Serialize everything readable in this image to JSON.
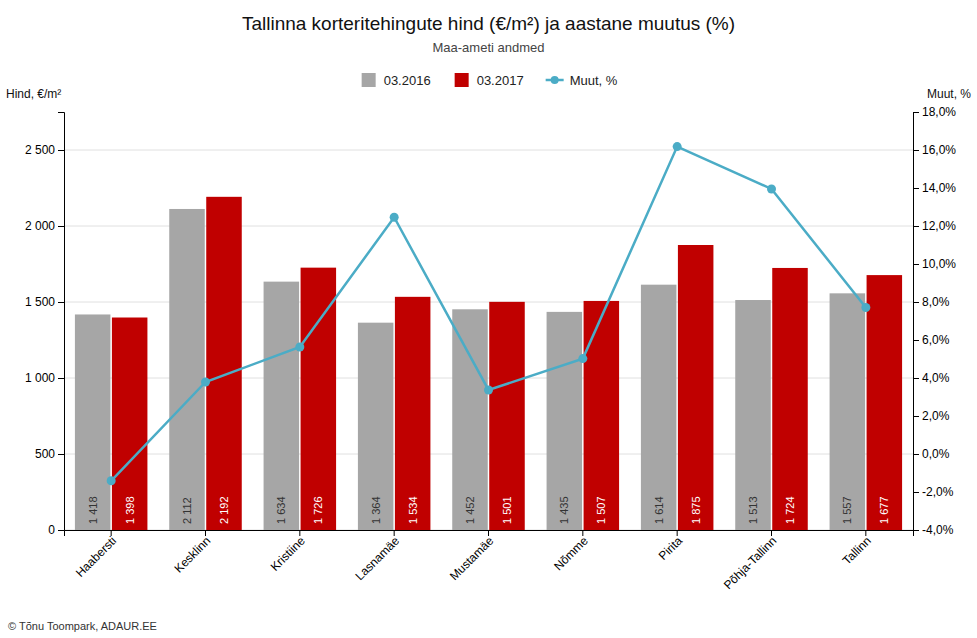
{
  "chart_data": {
    "type": "bar",
    "title": "Tallinna korteritehingute hind (€/m²) ja aastane muutus (%)",
    "subtitle": "Maa-ameti andmed",
    "ylabel": "Hind, €/m²",
    "y2label": "Muut, %",
    "categories": [
      "Haabersti",
      "Kesklinn",
      "Kristiine",
      "Lasnamäe",
      "Mustamäe",
      "Nõmme",
      "Pirita",
      "Põhja-Tallinn",
      "Tallinn"
    ],
    "series": [
      {
        "name": "03.2016",
        "type": "bar",
        "color": "#a6a6a6",
        "data_labels": true,
        "values": [
          1418,
          2112,
          1634,
          1364,
          1452,
          1435,
          1614,
          1513,
          1557
        ],
        "value_labels": [
          "1 418",
          "2 112",
          "1 634",
          "1 364",
          "1 452",
          "1 435",
          "1 614",
          "1 513",
          "1 557"
        ]
      },
      {
        "name": "03.2017",
        "type": "bar",
        "color": "#c00000",
        "data_labels": true,
        "values": [
          1398,
          2192,
          1726,
          1534,
          1501,
          1507,
          1875,
          1724,
          1677
        ],
        "value_labels": [
          "1 398",
          "2 192",
          "1 726",
          "1 534",
          "1 501",
          "1 507",
          "1 875",
          "1 724",
          "1 677"
        ]
      },
      {
        "name": "Muut, %",
        "type": "line",
        "axis": "y2",
        "color": "#4bacc6",
        "marker": "circle",
        "values": [
          -1.41,
          3.79,
          5.63,
          12.46,
          3.37,
          5.02,
          16.18,
          13.95,
          7.71
        ]
      }
    ],
    "ylim": [
      0,
      2750
    ],
    "yticks": [
      0,
      500,
      {
        "value": 1000,
        "label": "1 000"
      },
      {
        "value": 1500,
        "label": "1 500"
      },
      {
        "value": 2000,
        "label": "2 000"
      },
      {
        "value": 2500,
        "label": "2 500"
      }
    ],
    "y2lim": [
      -4.0,
      18.0
    ],
    "y2ticks": [
      {
        "value": -4.0,
        "label": "-4,0%"
      },
      {
        "value": -2.0,
        "label": "-2,0%"
      },
      {
        "value": 0.0,
        "label": "0,0%"
      },
      {
        "value": 2.0,
        "label": "2,0%"
      },
      {
        "value": 4.0,
        "label": "4,0%"
      },
      {
        "value": 6.0,
        "label": "6,0%"
      },
      {
        "value": 8.0,
        "label": "8,0%"
      },
      {
        "value": 10.0,
        "label": "10,0%"
      },
      {
        "value": 12.0,
        "label": "12,0%"
      },
      {
        "value": 14.0,
        "label": "14,0%"
      },
      {
        "value": 16.0,
        "label": "16,0%"
      },
      {
        "value": 18.0,
        "label": "18,0%"
      }
    ],
    "grid": true,
    "legend": "top",
    "annotations": [
      "© Tõnu Toompark, ADAUR.EE"
    ]
  }
}
